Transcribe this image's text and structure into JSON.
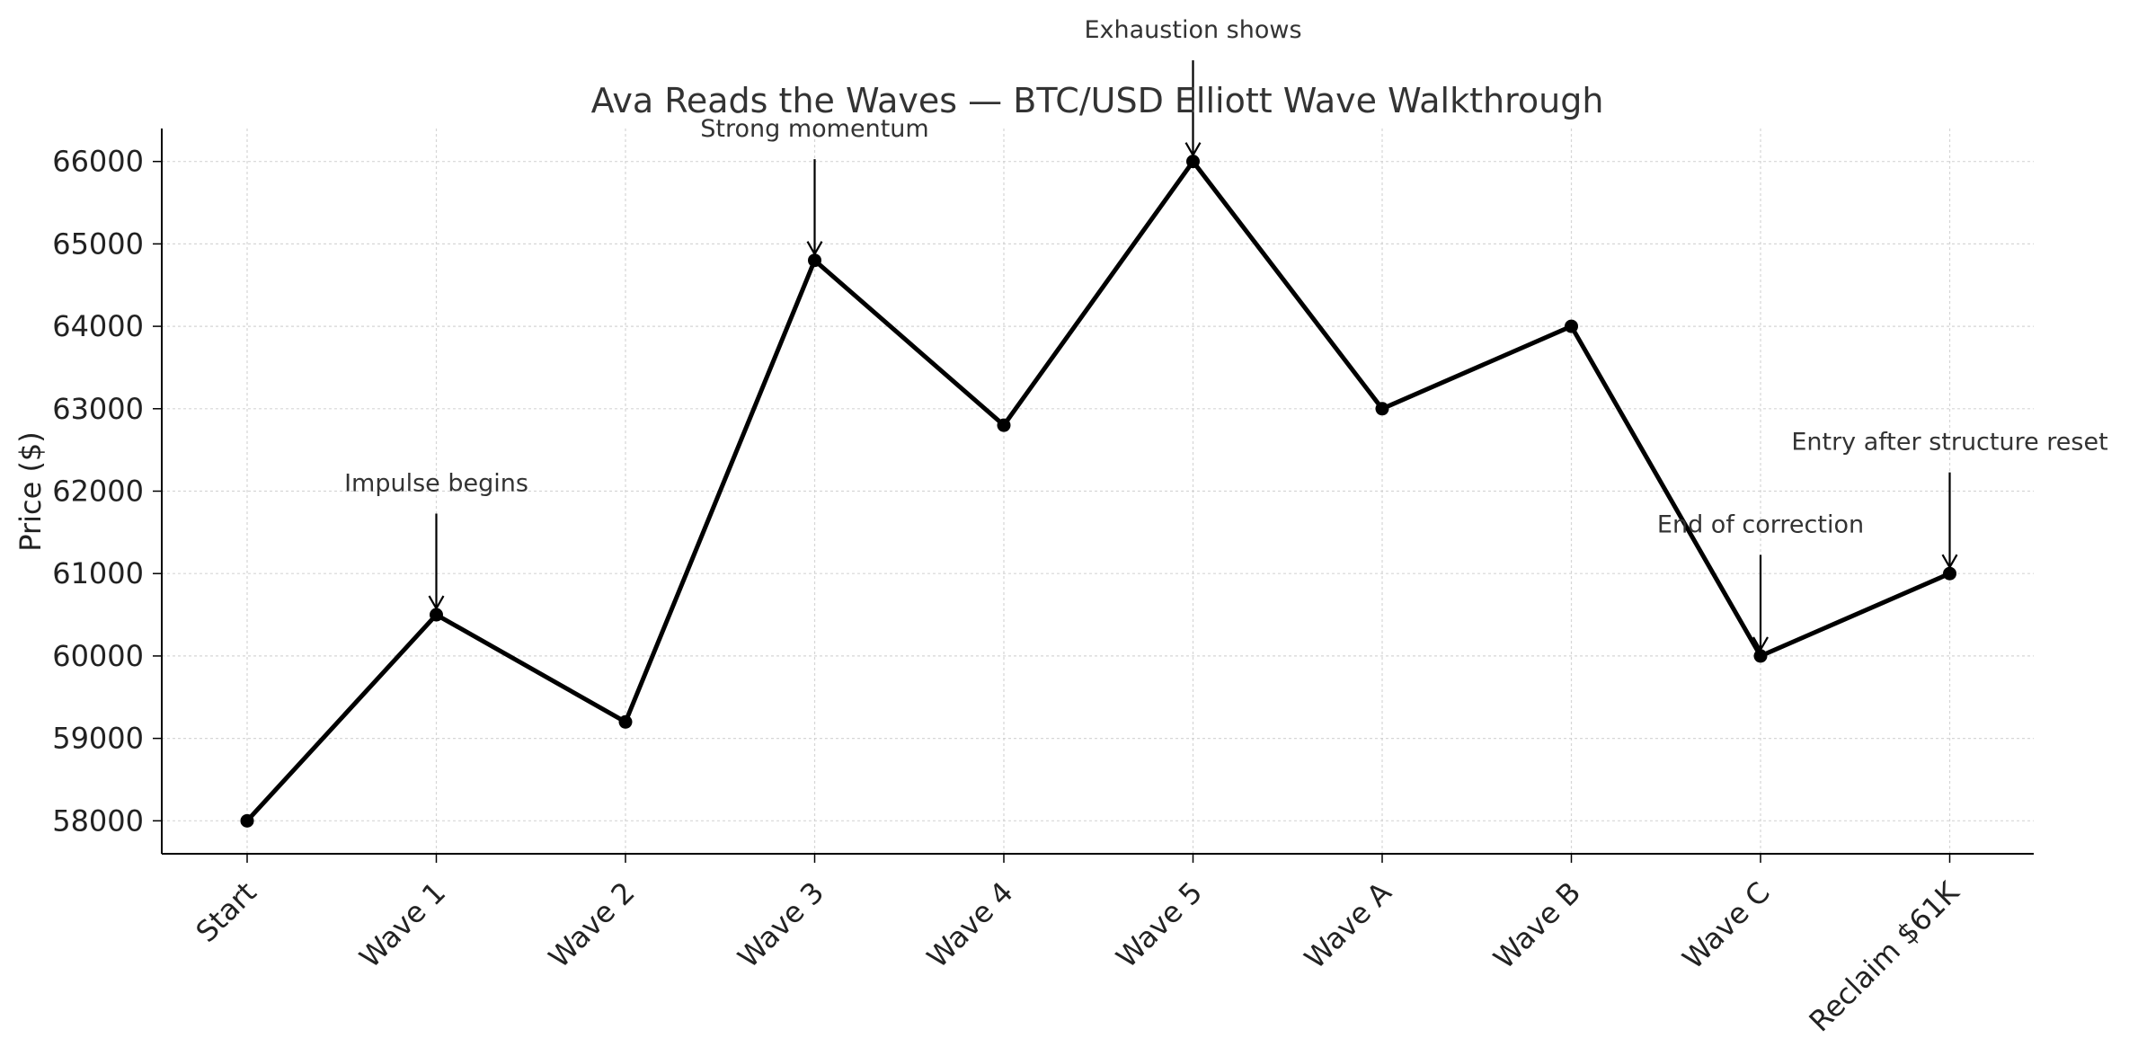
{
  "chart_data": {
    "type": "line",
    "title": "Ava Reads the Waves — BTC/USD Elliott Wave Walkthrough",
    "xlabel": "",
    "ylabel": "Price ($)",
    "categories": [
      "Start",
      "Wave 1",
      "Wave 2",
      "Wave 3",
      "Wave 4",
      "Wave 5",
      "Wave A",
      "Wave B",
      "Wave C",
      "Reclaim $61K"
    ],
    "series": [
      {
        "values": [
          58000,
          60500,
          59200,
          64800,
          62800,
          66000,
          63000,
          64000,
          60000,
          61000
        ]
      }
    ],
    "ylim": [
      57600,
      66400
    ],
    "yticks": [
      58000,
      59000,
      60000,
      61000,
      62000,
      63000,
      64000,
      65000,
      66000
    ],
    "grid": true,
    "line_color": "#000000",
    "annotations": [
      {
        "text": "Impulse begins",
        "category": "Wave 1",
        "text_y": 62000
      },
      {
        "text": "Strong momentum",
        "category": "Wave 3",
        "text_y": 66300
      },
      {
        "text": "Exhaustion shows",
        "category": "Wave 5",
        "text_y": 67500
      },
      {
        "text": "End of correction",
        "category": "Wave C",
        "text_y": 61500
      },
      {
        "text": "Entry after structure reset",
        "category": "Reclaim $61K",
        "text_y": 62500
      }
    ]
  }
}
